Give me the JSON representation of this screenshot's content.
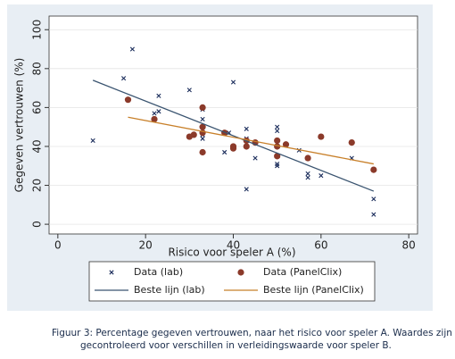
{
  "chart_data": {
    "type": "scatter",
    "x_label": "Risico voor speler A (%)",
    "y_label": "Gegeven vertrouwen (%)",
    "xlim": [
      -2,
      82
    ],
    "ylim": [
      -5,
      107
    ],
    "xticks": [
      0,
      20,
      40,
      60,
      80
    ],
    "yticks": [
      0,
      20,
      40,
      60,
      80,
      100
    ],
    "grid": "y",
    "series": [
      {
        "name": "Data (lab)",
        "mode": "markers",
        "marker": "x",
        "color": "#1a2c5b",
        "x": [
          8,
          15,
          17,
          22,
          23,
          23,
          30,
          31,
          33,
          33,
          33,
          33,
          33,
          38,
          39,
          40,
          40,
          43,
          43,
          43,
          45,
          50,
          50,
          50,
          50,
          50,
          55,
          57,
          57,
          60,
          67,
          72,
          72
        ],
        "values": [
          43,
          75,
          90,
          57,
          58,
          66,
          69,
          46,
          44,
          46,
          50,
          54,
          59,
          37,
          47,
          73,
          40,
          18,
          44,
          49,
          34,
          30,
          31,
          43,
          48,
          50,
          38,
          24,
          26,
          25,
          34,
          5,
          13
        ]
      },
      {
        "name": "Data (PanelClix)",
        "mode": "markers",
        "marker": "dot",
        "color": "#8b3a2a",
        "x": [
          16,
          22,
          30,
          31,
          33,
          33,
          33,
          33,
          38,
          40,
          40,
          43,
          43,
          45,
          50,
          50,
          50,
          52,
          57,
          60,
          67,
          72
        ],
        "values": [
          64,
          54,
          45,
          46,
          37,
          47,
          50,
          60,
          47,
          40,
          39,
          43,
          40,
          42,
          43,
          40,
          35,
          41,
          34,
          45,
          42,
          28
        ]
      },
      {
        "name": "Beste lijn (lab)",
        "mode": "line",
        "color": "#3a5470",
        "x": [
          8,
          72
        ],
        "values": [
          74,
          17
        ]
      },
      {
        "name": "Beste lijn (PanelClix)",
        "mode": "line",
        "color": "#c8802a",
        "x": [
          16,
          72
        ],
        "values": [
          55,
          31
        ]
      }
    ],
    "caption": [
      "Figuur 3: Percentage gegeven vertrouwen, naar het risico voor speler A. Waardes zijn",
      "gecontroleerd voor verschillen in verleidingswaarde voor speler B."
    ]
  }
}
